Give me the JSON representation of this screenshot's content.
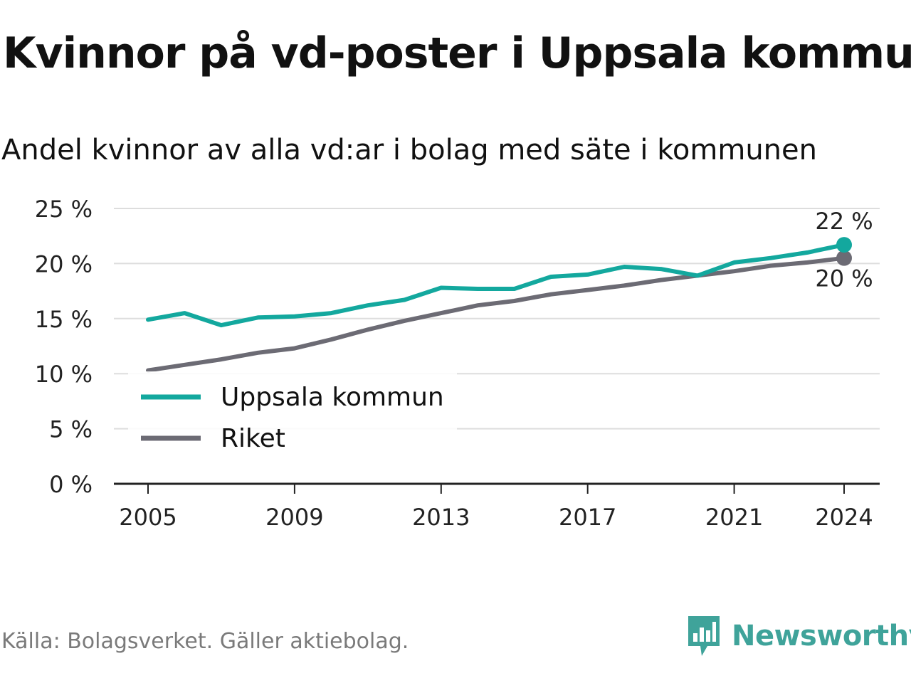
{
  "title": "Kvinnor på vd-poster i Uppsala kommun",
  "subtitle": "Andel kvinnor av alla vd:ar i bolag med säte i kommunen",
  "source": "Källa: Bolagsverket. Gäller aktiebolag.",
  "brand": "Newsworthy",
  "colors": {
    "uppsala": "#13a89e",
    "riket": "#6c6b74",
    "grid": "#dddddd",
    "axis": "#222222",
    "brand": "#3fa39a"
  },
  "chart_data": {
    "type": "line",
    "title": "Kvinnor på vd-poster i Uppsala kommun",
    "subtitle": "Andel kvinnor av alla vd:ar i bolag med säte i kommunen",
    "xlabel": "",
    "ylabel": "",
    "x": [
      2005,
      2006,
      2007,
      2008,
      2009,
      2010,
      2011,
      2012,
      2013,
      2014,
      2015,
      2016,
      2017,
      2018,
      2019,
      2020,
      2021,
      2022,
      2023,
      2024
    ],
    "x_ticks": [
      2005,
      2009,
      2013,
      2017,
      2021,
      2024
    ],
    "ylim": [
      0,
      25
    ],
    "y_ticks": [
      0,
      5,
      10,
      15,
      20,
      25
    ],
    "y_tick_labels": [
      "0 %",
      "5 %",
      "10 %",
      "15 %",
      "20 %",
      "25 %"
    ],
    "grid": true,
    "legend_position": "bottom-left",
    "series": [
      {
        "name": "Uppsala kommun",
        "color": "#13a89e",
        "values": [
          14.9,
          15.5,
          14.4,
          15.1,
          15.2,
          15.5,
          16.2,
          16.7,
          17.8,
          17.7,
          17.7,
          18.8,
          19.0,
          19.7,
          19.5,
          18.9,
          20.1,
          20.5,
          21.0,
          21.7
        ],
        "end_label": "22 %"
      },
      {
        "name": "Riket",
        "color": "#6c6b74",
        "values": [
          10.3,
          10.8,
          11.3,
          11.9,
          12.3,
          13.1,
          14.0,
          14.8,
          15.5,
          16.2,
          16.6,
          17.2,
          17.6,
          18.0,
          18.5,
          18.9,
          19.3,
          19.8,
          20.1,
          20.5
        ],
        "end_label": "20 %"
      }
    ]
  }
}
